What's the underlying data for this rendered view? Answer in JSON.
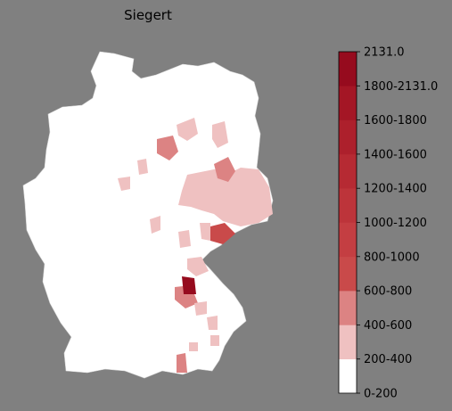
{
  "title": "Siegert",
  "colorbar": {
    "labels": [
      "0-200",
      "200-400",
      "400-600",
      "600-800",
      "800-1000",
      "1000-1200",
      "1200-1400",
      "1400-1600",
      "1600-1800",
      "1800-2131.0",
      "2131.0"
    ],
    "colors": [
      "#ffffff",
      "#efc1c1",
      "#dc8383",
      "#c94a4a",
      "#c43e42",
      "#bd343a",
      "#b62a33",
      "#ad202c",
      "#a41625",
      "#960b1e"
    ]
  }
}
